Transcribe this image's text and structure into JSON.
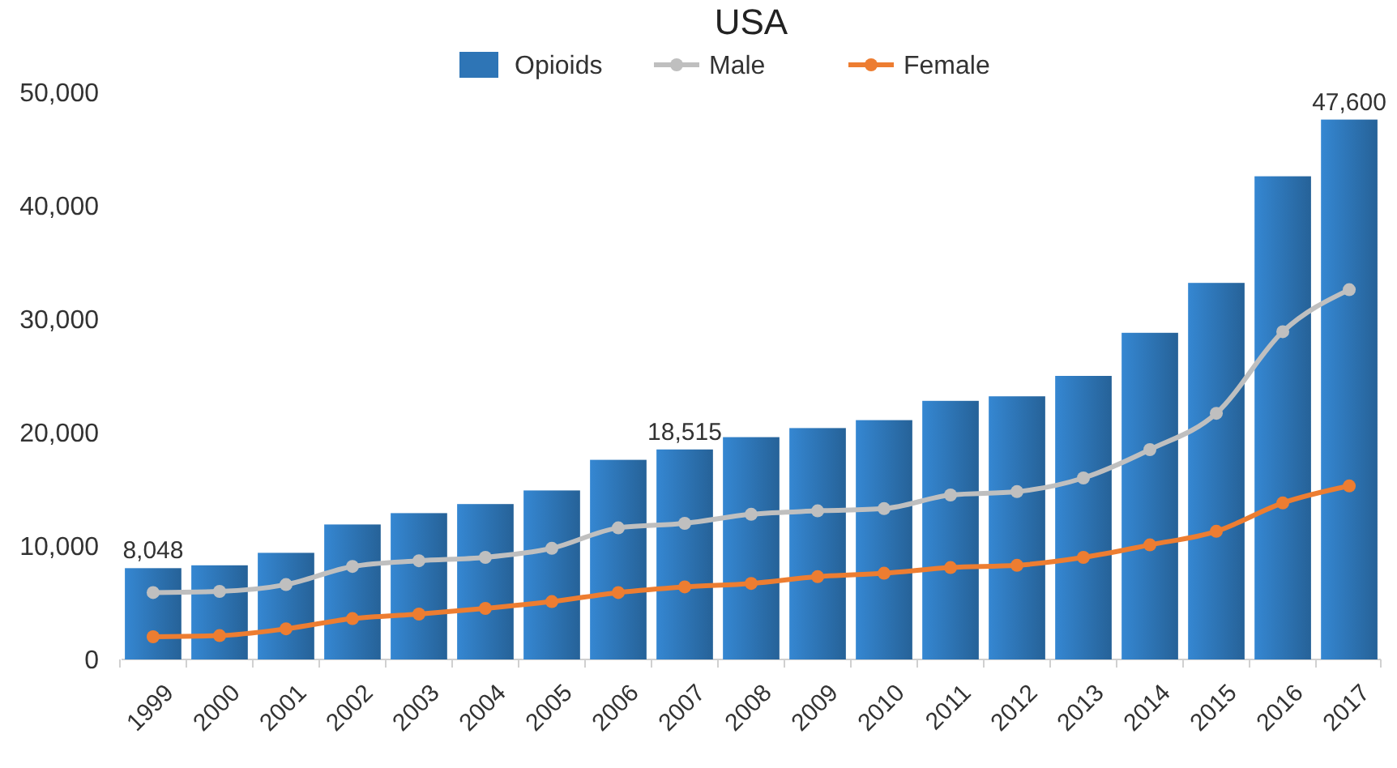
{
  "chart_data": {
    "type": "bar",
    "title": "USA",
    "categories": [
      "1999",
      "2000",
      "2001",
      "2002",
      "2003",
      "2004",
      "2005",
      "2006",
      "2007",
      "2008",
      "2009",
      "2010",
      "2011",
      "2012",
      "2013",
      "2014",
      "2015",
      "2016",
      "2017"
    ],
    "series": [
      {
        "name": "Opioids",
        "color": "#2e75b6",
        "values": [
          8048,
          8300,
          9400,
          11900,
          12900,
          13700,
          14900,
          17600,
          18515,
          19600,
          20400,
          21100,
          22800,
          23200,
          25000,
          28800,
          33200,
          42600,
          47600
        ],
        "value_labels": [
          "8,048",
          null,
          null,
          null,
          null,
          null,
          null,
          null,
          "18,515",
          null,
          null,
          null,
          null,
          null,
          null,
          null,
          null,
          null,
          "47,600"
        ]
      },
      {
        "name": "Male",
        "type": "line",
        "color": "#bfbfbf",
        "values": [
          5900,
          6000,
          6600,
          8200,
          8700,
          9000,
          9800,
          11600,
          12000,
          12800,
          13100,
          13300,
          14500,
          14800,
          16000,
          18500,
          21700,
          28900,
          32600
        ]
      },
      {
        "name": "Female",
        "type": "line",
        "color": "#ed7d31",
        "values": [
          2000,
          2100,
          2700,
          3600,
          4000,
          4500,
          5100,
          5900,
          6400,
          6700,
          7300,
          7600,
          8100,
          8300,
          9000,
          10100,
          11300,
          13800,
          15300
        ]
      }
    ],
    "ylim": [
      0,
      50000
    ],
    "yticks": [
      0,
      {
        "value": 10000,
        "label": "10,000"
      },
      {
        "value": 20000,
        "label": "20,000"
      },
      {
        "value": 30000,
        "label": "30,000"
      },
      {
        "value": 40000,
        "label": "40,000"
      },
      {
        "value": 50000,
        "label": "50,000"
      }
    ],
    "grid": false,
    "legend": "top",
    "marker": "circle",
    "line_style": "solid"
  }
}
